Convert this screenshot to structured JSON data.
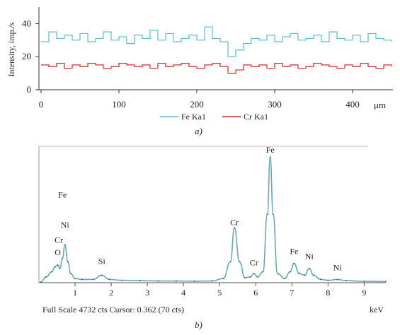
{
  "panel_a": {
    "ylabel": "Intensity, imp./s",
    "xunit": "μm",
    "caption": "a)",
    "legend": [
      {
        "label": "Fe Ka1",
        "color": "#5bbcd0"
      },
      {
        "label": "Cr Ka1",
        "color": "#d42a2a"
      }
    ]
  },
  "panel_b": {
    "footer": "Full Scale 4732 cts Cursor: 0.362 (70 cts)",
    "xunit": "keV",
    "caption": "b)",
    "line_color": "#6aa8b4",
    "peak_labels": [
      {
        "text": "Fe",
        "energy": 0.65,
        "ypct": 64
      },
      {
        "text": "Ni",
        "energy": 0.72,
        "ypct": 40
      },
      {
        "text": "Cr",
        "energy": 0.55,
        "ypct": 28
      },
      {
        "text": "O",
        "energy": 0.52,
        "ypct": 18
      },
      {
        "text": "Si",
        "energy": 1.74,
        "ypct": 11
      },
      {
        "text": "Cr",
        "energy": 5.41,
        "ypct": 42
      },
      {
        "text": "Cr",
        "energy": 5.95,
        "ypct": 10
      },
      {
        "text": "Fe",
        "energy": 6.4,
        "ypct": 100
      },
      {
        "text": "Fe",
        "energy": 7.06,
        "ypct": 19
      },
      {
        "text": "Ni",
        "energy": 7.48,
        "ypct": 15
      },
      {
        "text": "Ni",
        "energy": 8.26,
        "ypct": 6
      }
    ]
  },
  "chart_data": [
    {
      "type": "line",
      "ylabel": "Intensity, imp./s",
      "xlabel": "μm",
      "xlim": [
        0,
        450
      ],
      "ylim": [
        0,
        50
      ],
      "xticks": [
        0,
        100,
        200,
        300,
        400
      ],
      "yticks": [
        0,
        20,
        40
      ],
      "legend_position": "bottom",
      "series": [
        {
          "name": "Fe Ka1",
          "color": "#5bbcd0",
          "x": [
            0,
            10,
            20,
            30,
            40,
            50,
            60,
            70,
            80,
            90,
            100,
            110,
            120,
            130,
            140,
            150,
            160,
            170,
            180,
            190,
            200,
            210,
            220,
            230,
            240,
            250,
            260,
            270,
            280,
            290,
            300,
            310,
            320,
            330,
            340,
            350,
            360,
            370,
            380,
            390,
            400,
            410,
            420,
            430,
            440,
            450
          ],
          "values": [
            29,
            35,
            31,
            33,
            30,
            34,
            29,
            31,
            35,
            30,
            32,
            28,
            33,
            31,
            36,
            30,
            34,
            29,
            31,
            33,
            30,
            38,
            31,
            29,
            20,
            24,
            28,
            31,
            30,
            33,
            29,
            32,
            34,
            30,
            31,
            33,
            29,
            35,
            31,
            30,
            33,
            29,
            34,
            31,
            30,
            29
          ]
        },
        {
          "name": "Cr Ka1",
          "color": "#d42a2a",
          "x": [
            0,
            10,
            20,
            30,
            40,
            50,
            60,
            70,
            80,
            90,
            100,
            110,
            120,
            130,
            140,
            150,
            160,
            170,
            180,
            190,
            200,
            210,
            220,
            230,
            240,
            250,
            260,
            270,
            280,
            290,
            300,
            310,
            320,
            330,
            340,
            350,
            360,
            370,
            380,
            390,
            400,
            410,
            420,
            430,
            440,
            450
          ],
          "values": [
            15,
            14,
            16,
            13,
            15,
            14,
            16,
            15,
            13,
            14,
            16,
            15,
            14,
            15,
            13,
            16,
            14,
            15,
            16,
            14,
            13,
            15,
            16,
            14,
            10,
            12,
            15,
            14,
            15,
            13,
            16,
            14,
            15,
            13,
            14,
            16,
            15,
            14,
            13,
            15,
            14,
            16,
            14,
            13,
            15,
            14
          ]
        }
      ]
    },
    {
      "type": "line",
      "xlabel": "keV",
      "xlim": [
        0,
        9.6
      ],
      "xticks": [
        1,
        2,
        3,
        4,
        5,
        6,
        7,
        8,
        9
      ],
      "series": [
        {
          "color": "#6aa8b4",
          "x": [
            0.05,
            0.2,
            0.35,
            0.45,
            0.52,
            0.58,
            0.65,
            0.72,
            0.8,
            0.88,
            1.0,
            1.2,
            1.5,
            1.74,
            1.95,
            2.3,
            2.8,
            3.3,
            3.8,
            4.3,
            4.8,
            5.1,
            5.3,
            5.41,
            5.55,
            5.7,
            5.85,
            5.95,
            6.05,
            6.2,
            6.32,
            6.4,
            6.48,
            6.6,
            6.8,
            6.95,
            7.06,
            7.2,
            7.35,
            7.48,
            7.6,
            7.8,
            8.0,
            8.26,
            8.5,
            9.0,
            9.6
          ],
          "values": [
            0,
            3,
            6,
            9,
            10,
            8,
            14,
            22,
            12,
            5,
            2,
            1.5,
            1.5,
            4,
            1.5,
            1,
            0.8,
            0.6,
            0.6,
            0.5,
            0.6,
            2,
            12,
            32,
            12,
            2.5,
            3,
            5,
            3,
            6,
            40,
            74,
            40,
            5,
            2,
            6,
            11,
            5,
            4,
            8,
            4,
            1.5,
            1,
            1.5,
            0.8,
            0.4,
            0.3
          ]
        }
      ]
    }
  ]
}
